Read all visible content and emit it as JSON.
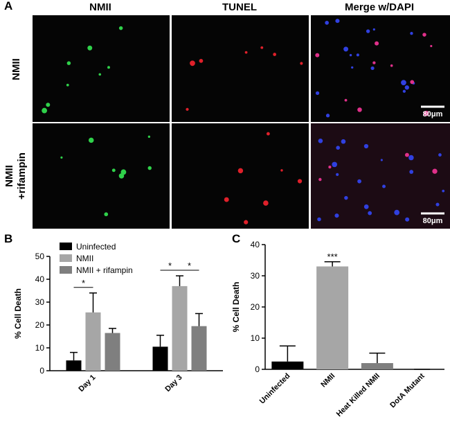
{
  "panel_a": {
    "label": "A",
    "columns": [
      "NMII",
      "TUNEL",
      "Merge w/DAPI"
    ],
    "rows": [
      {
        "lines": [
          "NMII"
        ]
      },
      {
        "lines": [
          "NMII",
          "+rifampin"
        ]
      }
    ],
    "scale_bar": "80μm"
  },
  "chart_data": [
    {
      "type": "bar",
      "label": "B",
      "ylabel": "% Cell Death",
      "categories": [
        "Day 1",
        "Day 3"
      ],
      "series": [
        {
          "name": "Uninfected",
          "color": "#000000",
          "values": [
            4.5,
            10.5
          ],
          "errors": [
            3.5,
            5
          ]
        },
        {
          "name": "NMII",
          "color": "#a6a6a6",
          "values": [
            25.5,
            37
          ],
          "errors": [
            8.5,
            4.5
          ]
        },
        {
          "name": "NMII + rifampin",
          "color": "#7f7f7f",
          "values": [
            16.5,
            19.5
          ],
          "errors": [
            2,
            5.5
          ]
        }
      ],
      "ylim": [
        0,
        50
      ],
      "yticks": [
        0,
        10,
        20,
        30,
        40,
        50
      ],
      "annotations": [
        {
          "text": "*",
          "category": "Day 1",
          "between": [
            "Uninfected",
            "NMII"
          ]
        },
        {
          "text": "*",
          "category": "Day 3",
          "between": [
            "Uninfected",
            "NMII"
          ]
        },
        {
          "text": "*",
          "category": "Day 3",
          "between": [
            "NMII",
            "NMII + rifampin"
          ]
        }
      ]
    },
    {
      "type": "bar",
      "label": "C",
      "ylabel": "% Cell Death",
      "categories": [
        "Uninfected",
        "NMII",
        "Heat Killed NMII",
        "DotA Mutant"
      ],
      "values": [
        2.5,
        33,
        2,
        0
      ],
      "errors": [
        5,
        1.5,
        3.2,
        0
      ],
      "colors": [
        "#000000",
        "#a6a6a6",
        "#7f7f7f",
        "#7f7f7f"
      ],
      "ylim": [
        0,
        40
      ],
      "yticks": [
        0,
        10,
        20,
        30,
        40
      ],
      "annotations": [
        {
          "text": "***",
          "category": "NMII"
        }
      ]
    }
  ]
}
